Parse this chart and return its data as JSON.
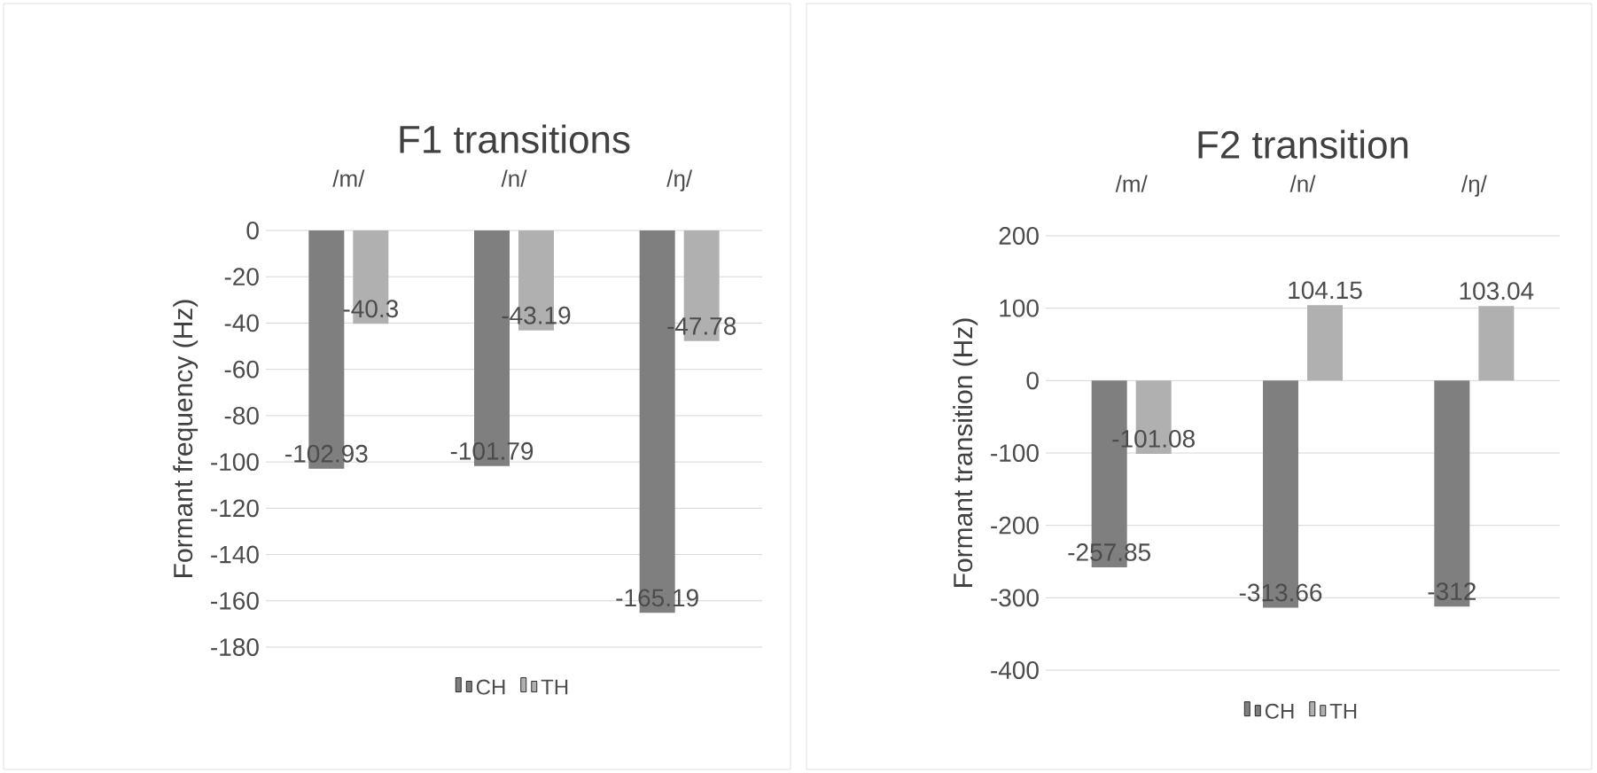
{
  "chart_data": [
    {
      "type": "bar",
      "title": "F1 transitions",
      "ylabel": "Formant frequency (Hz)",
      "categories": [
        "/m/",
        "/n/",
        "/ŋ/"
      ],
      "series": [
        {
          "name": "CH",
          "color": "#7f7f7f",
          "values": [
            -102.93,
            -101.79,
            -165.19
          ]
        },
        {
          "name": "TH",
          "color": "#b0b0b0",
          "values": [
            -40.3,
            -43.19,
            -47.78
          ]
        }
      ],
      "ylim": [
        -180,
        0
      ],
      "yticks": [
        -180,
        -160,
        -140,
        -120,
        -100,
        -80,
        -60,
        -40,
        -20,
        0
      ],
      "grid": "y",
      "legend": "bottom",
      "data_labels": true
    },
    {
      "type": "bar",
      "title": "F2 transition",
      "ylabel": "Formant transition (Hz)",
      "categories": [
        "/m/",
        "/n/",
        "/ŋ/"
      ],
      "series": [
        {
          "name": "CH",
          "color": "#7f7f7f",
          "values": [
            -257.85,
            -313.66,
            -312
          ]
        },
        {
          "name": "TH",
          "color": "#b0b0b0",
          "values": [
            -101.08,
            104.15,
            103.04
          ]
        }
      ],
      "ylim": [
        -400,
        200
      ],
      "yticks": [
        -400,
        -300,
        -200,
        -100,
        0,
        100,
        200
      ],
      "grid": "y",
      "legend": "bottom",
      "data_labels": true
    }
  ]
}
